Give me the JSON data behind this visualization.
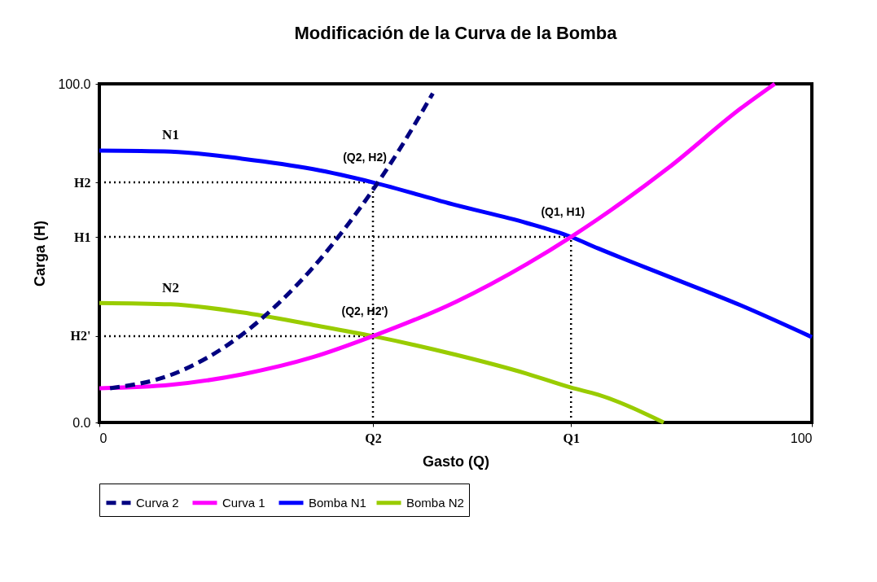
{
  "chart_data": {
    "type": "line",
    "title": "Modificación de la Curva de la Bomba",
    "xlabel": "Gasto (Q)",
    "ylabel": "Carga (H)",
    "xlim": [
      0,
      100
    ],
    "ylim": [
      0,
      100
    ],
    "xticks": [
      0,
      {
        "value": 38.4,
        "label": "Q2"
      },
      {
        "value": 66.2,
        "label": "Q1"
      },
      100
    ],
    "yticks": [
      {
        "value": 0,
        "label": "0.0"
      },
      {
        "value": 25.5,
        "label": "H2'"
      },
      {
        "value": 54.8,
        "label": "H1"
      },
      {
        "value": 70.9,
        "label": "H2"
      },
      {
        "value": 100,
        "label": "100.0"
      }
    ],
    "grid": false,
    "legend": "bottom",
    "marker": "none",
    "series": [
      {
        "name": "Curva  2",
        "color": "#000080",
        "line_style": "dashed",
        "x": [
          1.5,
          10,
          20,
          25,
          30,
          35,
          38.4,
          42,
          46.8
        ],
        "values": [
          10.1,
          14.0,
          25.9,
          34.9,
          45.8,
          58.8,
          68.7,
          80.2,
          97.2
        ]
      },
      {
        "name": "Curva  1",
        "color": "#ff00ff",
        "line_style": "solid",
        "x": [
          0,
          10,
          20,
          30,
          38.4,
          50,
          60,
          66.2,
          70,
          80,
          90,
          94.8
        ],
        "values": [
          10.1,
          11.1,
          14.2,
          19.3,
          25.5,
          35.6,
          46.8,
          54.8,
          60.1,
          75.4,
          92.7,
          100
        ]
      },
      {
        "name": "Bomba N1",
        "color": "#0000ff",
        "line_style": "solid",
        "x": [
          0,
          10,
          20,
          30,
          38.4,
          50,
          60,
          66.2,
          70,
          80,
          90,
          100
        ],
        "values": [
          80.3,
          80.0,
          77.9,
          74.8,
          70.9,
          64.2,
          58.9,
          54.8,
          51.4,
          43.0,
          34.6,
          25.2
        ]
      },
      {
        "name": "Bomba N2",
        "color": "#99cc00",
        "line_style": "solid",
        "x": [
          0,
          10,
          20,
          30,
          38.4,
          50,
          60,
          66.2,
          70,
          79.2
        ],
        "values": [
          35.3,
          34.9,
          32.5,
          28.8,
          25.5,
          20.0,
          14.4,
          10.3,
          8.2,
          0
        ]
      }
    ],
    "annotations": [
      {
        "text": "(Q2, H2)",
        "x": 38.4,
        "y": 70.9
      },
      {
        "text": "(Q1, H1)",
        "x": 66.2,
        "y": 54.8
      },
      {
        "text": "(Q2, H2')",
        "x": 38.4,
        "y": 25.5
      },
      {
        "text": "N1",
        "x": 10,
        "y": 80.0
      },
      {
        "text": "N2",
        "x": 10,
        "y": 34.9
      }
    ],
    "ref_lines": [
      {
        "axis": "y",
        "value": 70.9,
        "label": null,
        "color": "#000000",
        "line_style": "dotted"
      },
      {
        "axis": "y",
        "value": 54.8,
        "label": null,
        "color": "#000000",
        "line_style": "dotted"
      },
      {
        "axis": "y",
        "value": 25.5,
        "label": null,
        "color": "#000000",
        "line_style": "dotted"
      },
      {
        "axis": "x",
        "value": 38.4,
        "label": null,
        "color": "#000000",
        "line_style": "dotted"
      },
      {
        "axis": "x",
        "value": 66.2,
        "label": null,
        "color": "#000000",
        "line_style": "dotted"
      }
    ]
  }
}
